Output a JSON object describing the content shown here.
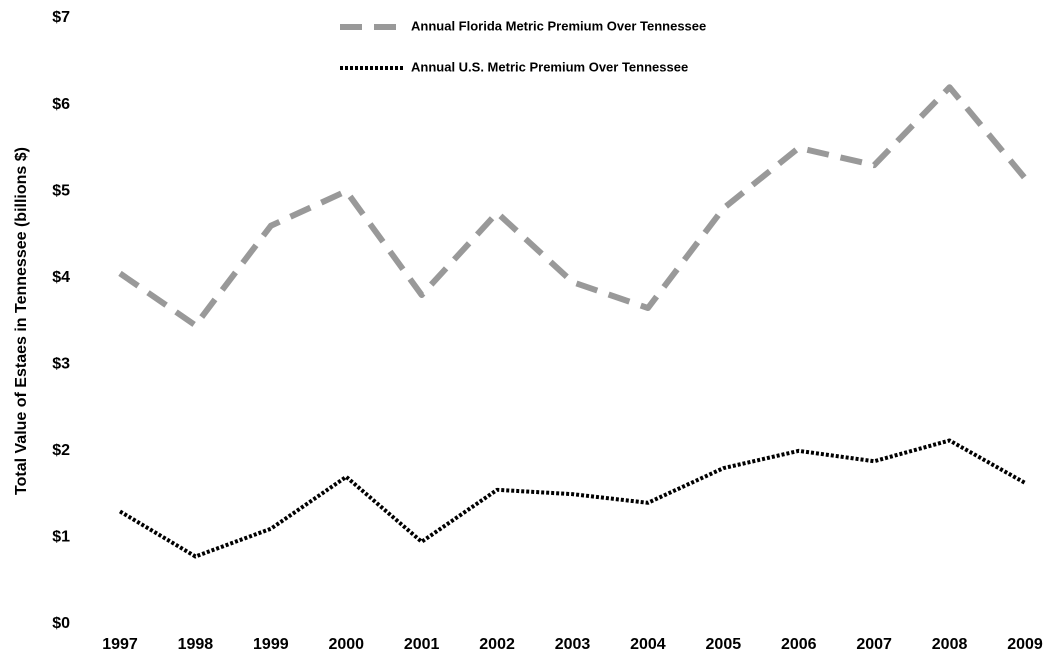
{
  "chart_data": {
    "type": "line",
    "y_label": "Total Value of Estaes in Tennessee (billions $)",
    "categories": [
      "1997",
      "1998",
      "1999",
      "2000",
      "2001",
      "2002",
      "2003",
      "2004",
      "2005",
      "2006",
      "2007",
      "2008",
      "2009"
    ],
    "series": [
      {
        "name": "Annual Florida Metric Premium Over Tennessee",
        "color": "#999999",
        "style": "dashed",
        "values": [
          4.05,
          3.45,
          4.6,
          5.0,
          3.8,
          4.75,
          3.95,
          3.65,
          4.8,
          5.5,
          5.3,
          6.2,
          5.15
        ]
      },
      {
        "name": "Annual U.S. Metric Premium Over Tennessee",
        "color": "#000000",
        "style": "dotted",
        "values": [
          1.3,
          0.78,
          1.1,
          1.7,
          0.95,
          1.55,
          1.5,
          1.4,
          1.8,
          2.0,
          1.88,
          2.12,
          1.63
        ]
      }
    ],
    "ylim": [
      0,
      7
    ],
    "yticks": [
      {
        "value": 0,
        "label": "$0"
      },
      {
        "value": 1,
        "label": "$1"
      },
      {
        "value": 2,
        "label": "$2"
      },
      {
        "value": 3,
        "label": "$3"
      },
      {
        "value": 4,
        "label": "$4"
      },
      {
        "value": 5,
        "label": "$5"
      },
      {
        "value": 6,
        "label": "$6"
      },
      {
        "value": 7,
        "label": "$7"
      }
    ],
    "grid": false
  }
}
